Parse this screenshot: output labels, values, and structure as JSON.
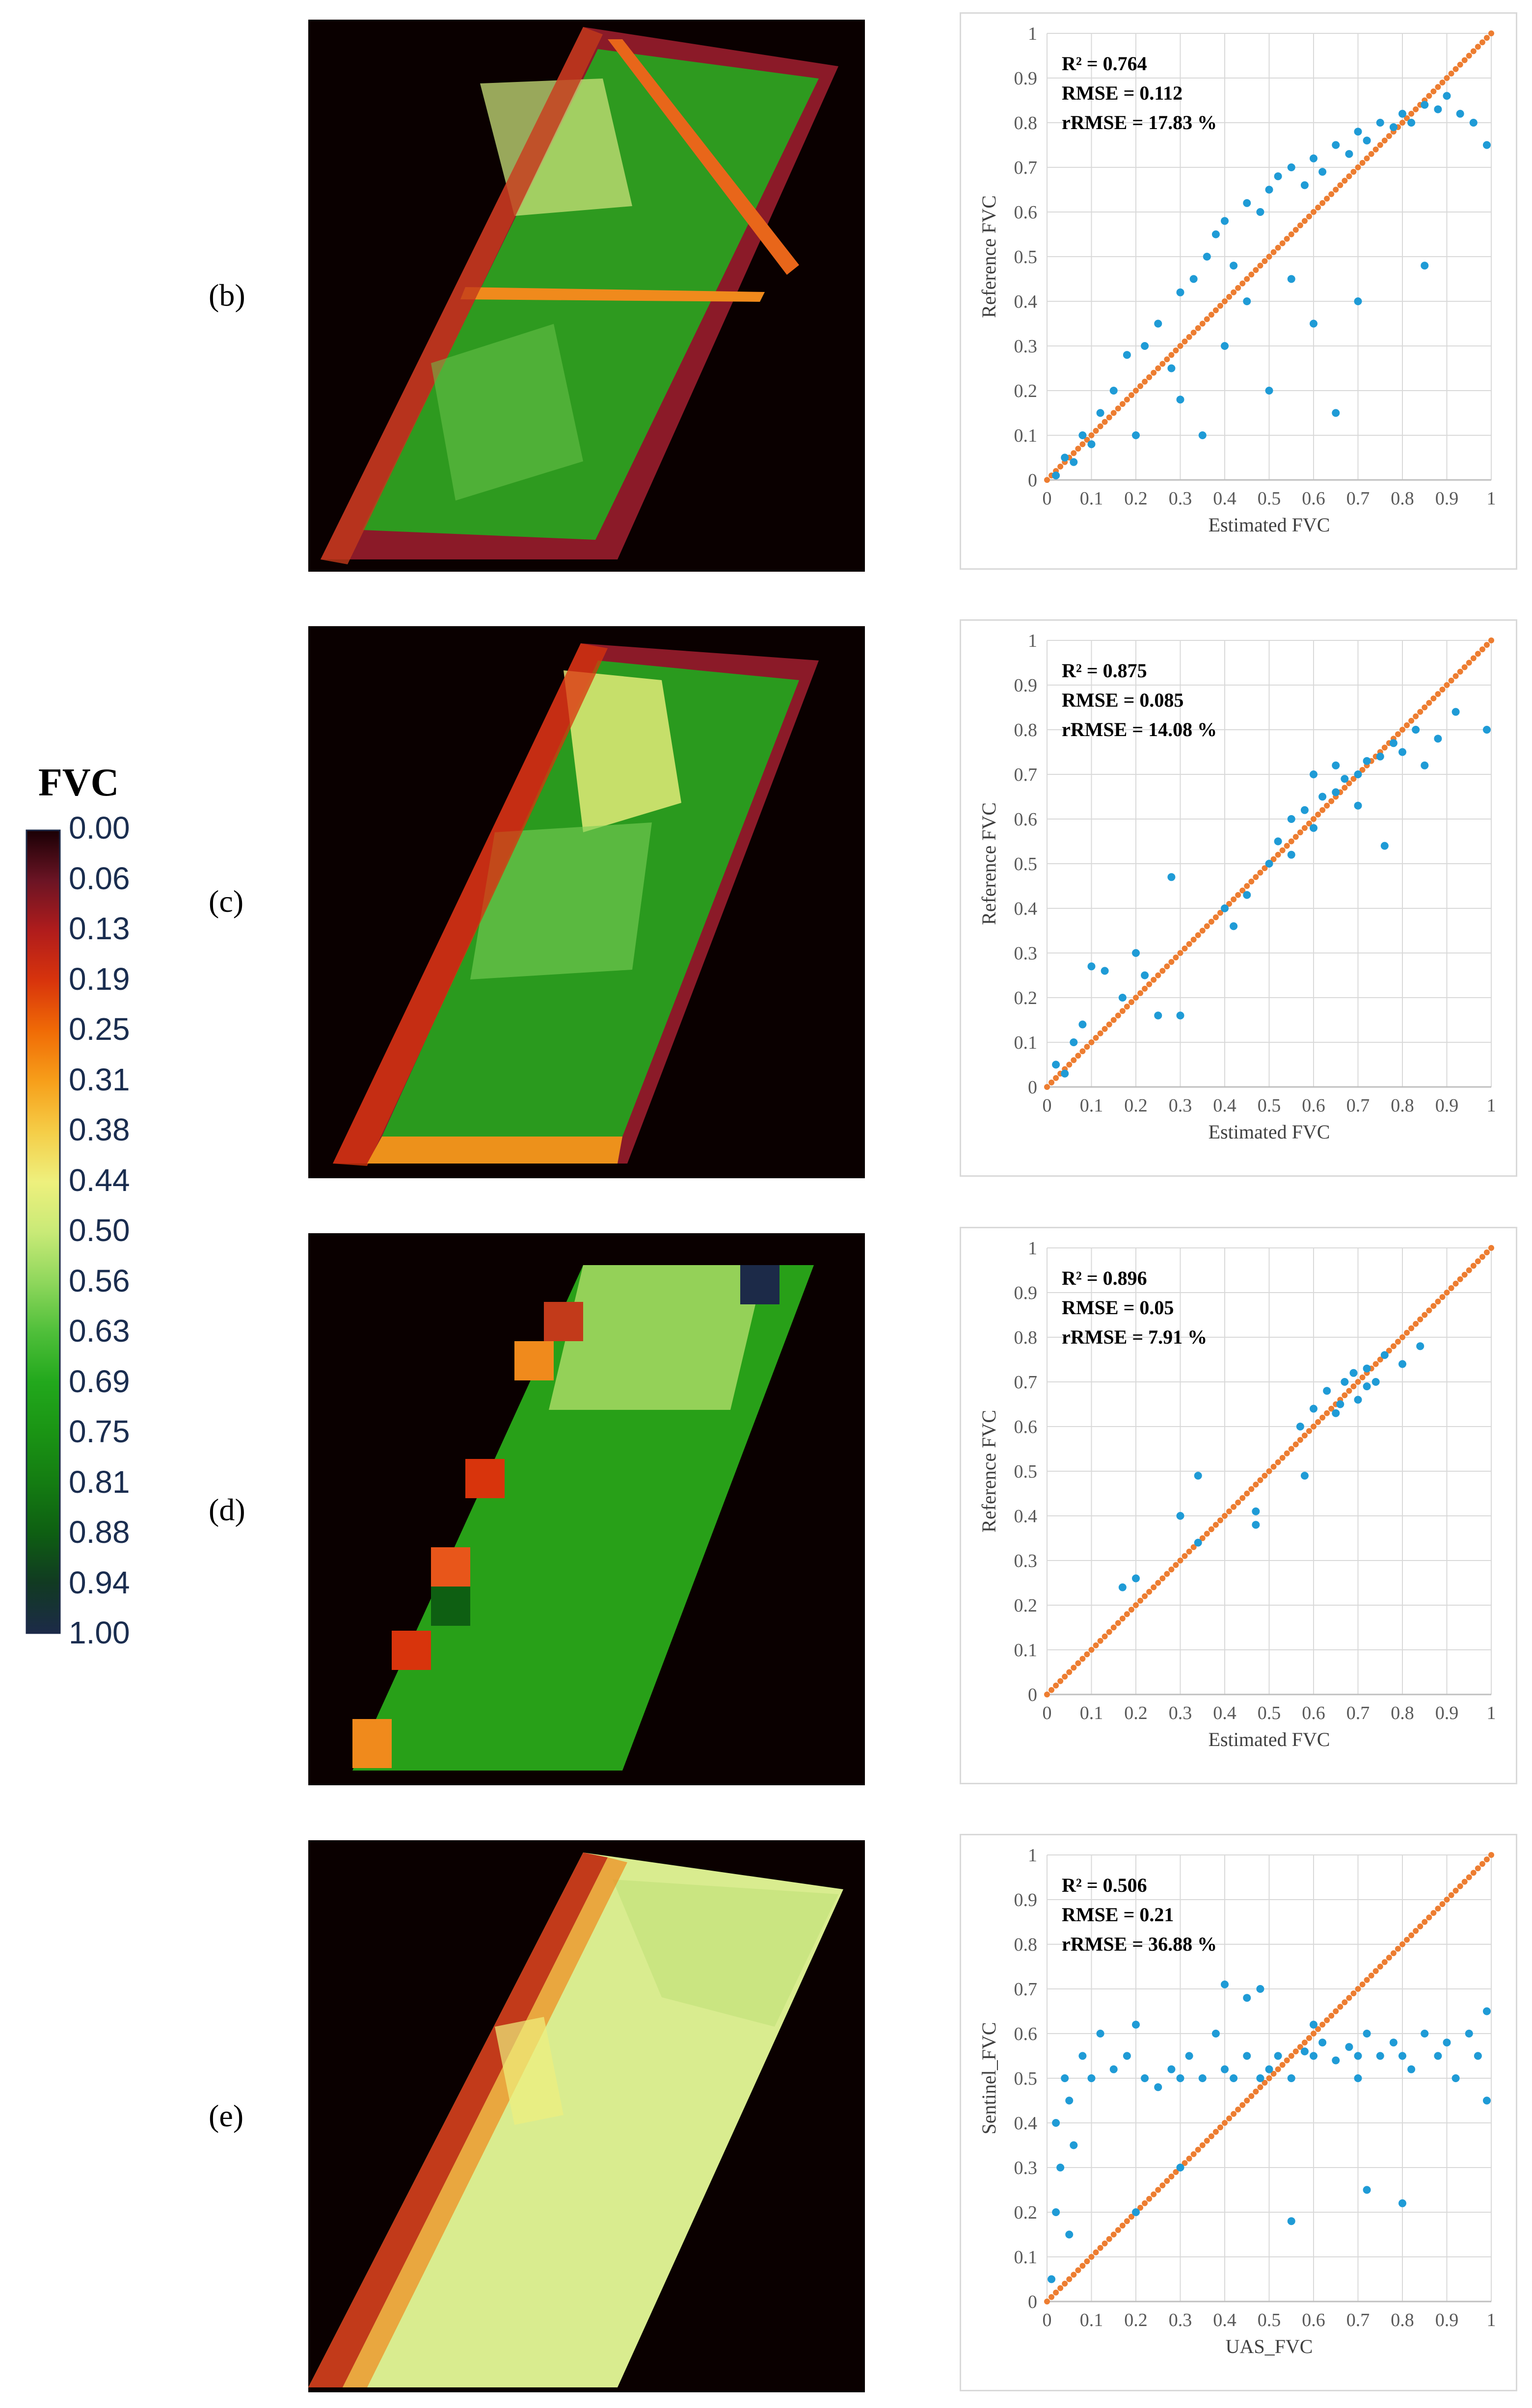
{
  "colorbar": {
    "title": "FVC",
    "ticks": [
      "0.00",
      "0.06",
      "0.13",
      "0.19",
      "0.25",
      "0.31",
      "0.38",
      "0.44",
      "0.50",
      "0.56",
      "0.63",
      "0.69",
      "0.75",
      "0.81",
      "0.88",
      "0.94",
      "1.00"
    ],
    "colors": [
      "#1a0005",
      "#6b1424",
      "#b01c1c",
      "#d8340c",
      "#f06b06",
      "#f79f1a",
      "#f5cd47",
      "#eef07d",
      "#c9ea77",
      "#8fd75c",
      "#4fbf3a",
      "#22a81c",
      "#1a9414",
      "#147c12",
      "#0e5f12",
      "#113a22",
      "#1c2a48"
    ]
  },
  "panels": [
    {
      "label": "(b)"
    },
    {
      "label": "(c)"
    },
    {
      "label": "(d)"
    },
    {
      "label": "(e)"
    }
  ],
  "chart_data": [
    {
      "type": "scatter",
      "panel": "(b)",
      "xlabel": "Estimated FVC",
      "ylabel": "Reference FVC",
      "xlim": [
        0,
        1
      ],
      "ylim": [
        0,
        1
      ],
      "xticks": [
        "0",
        "0.1",
        "0.2",
        "0.3",
        "0.4",
        "0.5",
        "0.6",
        "0.7",
        "0.8",
        "0.9",
        "1"
      ],
      "yticks": [
        "0",
        "0.1",
        "0.2",
        "0.3",
        "0.4",
        "0.5",
        "0.6",
        "0.7",
        "0.8",
        "0.9",
        "1"
      ],
      "stats": {
        "r2": "R² = 0.764",
        "rmse": "RMSE = 0.112",
        "rrmse": "rRMSE = 17.83 %"
      },
      "series": [
        {
          "name": "1:1 line",
          "color": "#ed7d31",
          "points": [
            [
              0,
              0
            ],
            [
              1,
              1
            ]
          ]
        },
        {
          "name": "samples",
          "color": "#1f9bd6",
          "points": [
            [
              0.02,
              0.01
            ],
            [
              0.04,
              0.05
            ],
            [
              0.06,
              0.04
            ],
            [
              0.08,
              0.1
            ],
            [
              0.1,
              0.08
            ],
            [
              0.12,
              0.15
            ],
            [
              0.15,
              0.2
            ],
            [
              0.18,
              0.28
            ],
            [
              0.22,
              0.3
            ],
            [
              0.25,
              0.35
            ],
            [
              0.28,
              0.25
            ],
            [
              0.3,
              0.42
            ],
            [
              0.33,
              0.45
            ],
            [
              0.36,
              0.5
            ],
            [
              0.38,
              0.55
            ],
            [
              0.4,
              0.58
            ],
            [
              0.42,
              0.48
            ],
            [
              0.45,
              0.62
            ],
            [
              0.48,
              0.6
            ],
            [
              0.5,
              0.65
            ],
            [
              0.52,
              0.68
            ],
            [
              0.55,
              0.7
            ],
            [
              0.58,
              0.66
            ],
            [
              0.6,
              0.72
            ],
            [
              0.62,
              0.69
            ],
            [
              0.65,
              0.75
            ],
            [
              0.68,
              0.73
            ],
            [
              0.7,
              0.78
            ],
            [
              0.72,
              0.76
            ],
            [
              0.75,
              0.8
            ],
            [
              0.78,
              0.79
            ],
            [
              0.8,
              0.82
            ],
            [
              0.82,
              0.8
            ],
            [
              0.85,
              0.84
            ],
            [
              0.88,
              0.83
            ],
            [
              0.9,
              0.86
            ],
            [
              0.93,
              0.82
            ],
            [
              0.96,
              0.8
            ],
            [
              0.99,
              0.75
            ],
            [
              0.6,
              0.35
            ],
            [
              0.5,
              0.2
            ],
            [
              0.7,
              0.4
            ],
            [
              0.65,
              0.15
            ],
            [
              0.4,
              0.3
            ],
            [
              0.35,
              0.1
            ],
            [
              0.85,
              0.48
            ],
            [
              0.55,
              0.45
            ],
            [
              0.3,
              0.18
            ],
            [
              0.2,
              0.1
            ],
            [
              0.45,
              0.4
            ]
          ]
        }
      ]
    },
    {
      "type": "scatter",
      "panel": "(c)",
      "xlabel": "Estimated FVC",
      "ylabel": "Reference FVC",
      "xlim": [
        0,
        1
      ],
      "ylim": [
        0,
        1
      ],
      "xticks": [
        "0",
        "0.1",
        "0.2",
        "0.3",
        "0.4",
        "0.5",
        "0.6",
        "0.7",
        "0.8",
        "0.9",
        "1"
      ],
      "yticks": [
        "0",
        "0.1",
        "0.2",
        "0.3",
        "0.4",
        "0.5",
        "0.6",
        "0.7",
        "0.8",
        "0.9",
        "1"
      ],
      "stats": {
        "r2": "R² = 0.875",
        "rmse": "RMSE = 0.085",
        "rrmse": "rRMSE = 14.08 %"
      },
      "series": [
        {
          "name": "1:1 line",
          "color": "#ed7d31",
          "points": [
            [
              0,
              0
            ],
            [
              1,
              1
            ]
          ]
        },
        {
          "name": "samples",
          "color": "#1f9bd6",
          "points": [
            [
              0.02,
              0.05
            ],
            [
              0.04,
              0.03
            ],
            [
              0.06,
              0.1
            ],
            [
              0.08,
              0.14
            ],
            [
              0.1,
              0.27
            ],
            [
              0.13,
              0.26
            ],
            [
              0.17,
              0.2
            ],
            [
              0.2,
              0.3
            ],
            [
              0.22,
              0.25
            ],
            [
              0.25,
              0.16
            ],
            [
              0.28,
              0.47
            ],
            [
              0.3,
              0.16
            ],
            [
              0.4,
              0.4
            ],
            [
              0.42,
              0.36
            ],
            [
              0.45,
              0.43
            ],
            [
              0.5,
              0.5
            ],
            [
              0.52,
              0.55
            ],
            [
              0.55,
              0.6
            ],
            [
              0.58,
              0.62
            ],
            [
              0.6,
              0.58
            ],
            [
              0.62,
              0.65
            ],
            [
              0.65,
              0.66
            ],
            [
              0.67,
              0.69
            ],
            [
              0.7,
              0.7
            ],
            [
              0.72,
              0.73
            ],
            [
              0.75,
              0.74
            ],
            [
              0.78,
              0.77
            ],
            [
              0.8,
              0.75
            ],
            [
              0.83,
              0.8
            ],
            [
              0.85,
              0.72
            ],
            [
              0.88,
              0.78
            ],
            [
              0.92,
              0.84
            ],
            [
              0.99,
              0.8
            ],
            [
              0.6,
              0.7
            ],
            [
              0.7,
              0.63
            ],
            [
              0.76,
              0.54
            ],
            [
              0.65,
              0.72
            ],
            [
              0.55,
              0.52
            ]
          ]
        }
      ]
    },
    {
      "type": "scatter",
      "panel": "(d)",
      "xlabel": "Estimated FVC",
      "ylabel": "Reference FVC",
      "xlim": [
        0,
        1
      ],
      "ylim": [
        0,
        1
      ],
      "xticks": [
        "0",
        "0.1",
        "0.2",
        "0.3",
        "0.4",
        "0.5",
        "0.6",
        "0.7",
        "0.8",
        "0.9",
        "1"
      ],
      "yticks": [
        "0",
        "0.1",
        "0.2",
        "0.3",
        "0.4",
        "0.5",
        "0.6",
        "0.7",
        "0.8",
        "0.9",
        "1"
      ],
      "stats": {
        "r2": "R² = 0.896",
        "rmse": "RMSE = 0.05",
        "rrmse": "rRMSE = 7.91 %"
      },
      "series": [
        {
          "name": "1:1 line",
          "color": "#ed7d31",
          "points": [
            [
              0,
              0
            ],
            [
              1,
              1
            ]
          ]
        },
        {
          "name": "samples",
          "color": "#1f9bd6",
          "points": [
            [
              0.17,
              0.24
            ],
            [
              0.2,
              0.26
            ],
            [
              0.3,
              0.4
            ],
            [
              0.34,
              0.49
            ],
            [
              0.34,
              0.34
            ],
            [
              0.47,
              0.41
            ],
            [
              0.47,
              0.38
            ],
            [
              0.57,
              0.6
            ],
            [
              0.58,
              0.49
            ],
            [
              0.6,
              0.64
            ],
            [
              0.63,
              0.68
            ],
            [
              0.65,
              0.63
            ],
            [
              0.67,
              0.7
            ],
            [
              0.69,
              0.72
            ],
            [
              0.7,
              0.66
            ],
            [
              0.72,
              0.73
            ],
            [
              0.74,
              0.7
            ],
            [
              0.76,
              0.76
            ],
            [
              0.8,
              0.74
            ],
            [
              0.84,
              0.78
            ],
            [
              0.66,
              0.65
            ],
            [
              0.72,
              0.69
            ]
          ]
        }
      ]
    },
    {
      "type": "scatter",
      "panel": "(e)",
      "xlabel": "UAS_FVC",
      "ylabel": "Sentinel_FVC",
      "xlim": [
        0,
        1
      ],
      "ylim": [
        0,
        1
      ],
      "xticks": [
        "0",
        "0.1",
        "0.2",
        "0.3",
        "0.4",
        "0.5",
        "0.6",
        "0.7",
        "0.8",
        "0.9",
        "1"
      ],
      "yticks": [
        "0",
        "0.1",
        "0.2",
        "0.3",
        "0.4",
        "0.5",
        "0.6",
        "0.7",
        "0.8",
        "0.9",
        "1"
      ],
      "stats": {
        "r2": "R² = 0.506",
        "rmse": "RMSE = 0.21",
        "rrmse": "rRMSE = 36.88 %"
      },
      "series": [
        {
          "name": "1:1 line",
          "color": "#ed7d31",
          "points": [
            [
              0,
              0
            ],
            [
              1,
              1
            ]
          ]
        },
        {
          "name": "samples",
          "color": "#1f9bd6",
          "points": [
            [
              0.01,
              0.05
            ],
            [
              0.02,
              0.2
            ],
            [
              0.02,
              0.4
            ],
            [
              0.03,
              0.3
            ],
            [
              0.04,
              0.5
            ],
            [
              0.05,
              0.15
            ],
            [
              0.05,
              0.45
            ],
            [
              0.06,
              0.35
            ],
            [
              0.08,
              0.55
            ],
            [
              0.1,
              0.5
            ],
            [
              0.12,
              0.6
            ],
            [
              0.15,
              0.52
            ],
            [
              0.18,
              0.55
            ],
            [
              0.2,
              0.62
            ],
            [
              0.22,
              0.5
            ],
            [
              0.25,
              0.48
            ],
            [
              0.28,
              0.52
            ],
            [
              0.3,
              0.5
            ],
            [
              0.32,
              0.55
            ],
            [
              0.35,
              0.5
            ],
            [
              0.38,
              0.6
            ],
            [
              0.4,
              0.52
            ],
            [
              0.42,
              0.5
            ],
            [
              0.45,
              0.55
            ],
            [
              0.48,
              0.5
            ],
            [
              0.5,
              0.52
            ],
            [
              0.52,
              0.55
            ],
            [
              0.55,
              0.5
            ],
            [
              0.58,
              0.56
            ],
            [
              0.6,
              0.55
            ],
            [
              0.62,
              0.58
            ],
            [
              0.65,
              0.54
            ],
            [
              0.68,
              0.57
            ],
            [
              0.7,
              0.55
            ],
            [
              0.72,
              0.6
            ],
            [
              0.75,
              0.55
            ],
            [
              0.78,
              0.58
            ],
            [
              0.8,
              0.55
            ],
            [
              0.82,
              0.52
            ],
            [
              0.85,
              0.6
            ],
            [
              0.88,
              0.55
            ],
            [
              0.9,
              0.58
            ],
            [
              0.92,
              0.5
            ],
            [
              0.95,
              0.6
            ],
            [
              0.97,
              0.55
            ],
            [
              0.99,
              0.65
            ],
            [
              0.99,
              0.45
            ],
            [
              0.4,
              0.71
            ],
            [
              0.48,
              0.7
            ],
            [
              0.55,
              0.18
            ],
            [
              0.72,
              0.25
            ],
            [
              0.8,
              0.22
            ],
            [
              0.2,
              0.2
            ],
            [
              0.3,
              0.3
            ],
            [
              0.45,
              0.68
            ],
            [
              0.6,
              0.62
            ],
            [
              0.7,
              0.5
            ]
          ]
        }
      ]
    }
  ]
}
